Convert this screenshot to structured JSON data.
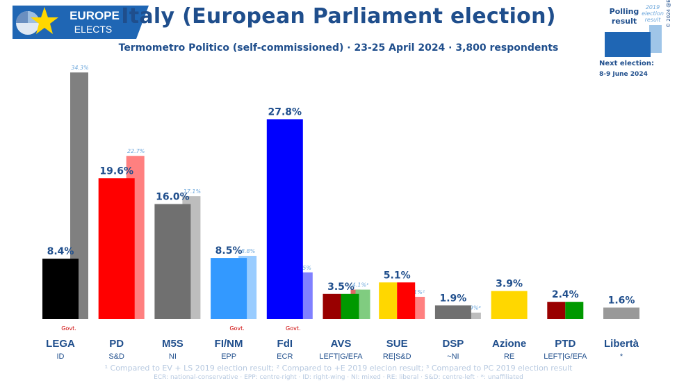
{
  "header": {
    "brand_line1": "EUROPE",
    "brand_line2": "ELECTS",
    "title": "Italy (European Parliament election)",
    "subtitle": "Termometro Politico (self-commissioned) · 23-25 April 2024 · 3,800 respondents"
  },
  "legend": {
    "polling_label": "Polling result",
    "election_label": "2019 election result",
    "next_election_label": "Next election:",
    "next_election_date": "8-9 June 2024",
    "copyright": "© 2024 @EuropeElects"
  },
  "chart_data": {
    "type": "bar",
    "series": [
      {
        "name": "Polling result",
        "values": [
          8.4,
          19.6,
          16.0,
          8.5,
          27.8,
          3.5,
          5.1,
          1.9,
          3.9,
          2.4,
          1.6
        ]
      },
      {
        "name": "2019 election result",
        "values": [
          34.3,
          22.7,
          17.1,
          8.8,
          6.5,
          4.1,
          3.1,
          0.9,
          null,
          null,
          null
        ]
      }
    ],
    "ylim": [
      0,
      35
    ],
    "parties": [
      {
        "name": "LEGA",
        "group": "ID",
        "poll": 8.4,
        "poll_label": "8.4%",
        "prev": 34.3,
        "prev_label": "34.3%",
        "govt": "Govt.",
        "colors": [
          "#000000"
        ],
        "prev_color": "#808080"
      },
      {
        "name": "PD",
        "group": "S&D",
        "poll": 19.6,
        "poll_label": "19.6%",
        "prev": 22.7,
        "prev_label": "22.7%",
        "govt": "",
        "colors": [
          "#ff0000"
        ],
        "prev_color": "#ff8080"
      },
      {
        "name": "M5S",
        "group": "NI",
        "poll": 16.0,
        "poll_label": "16.0%",
        "prev": 17.1,
        "prev_label": "17.1%",
        "govt": "",
        "colors": [
          "#707070"
        ],
        "prev_color": "#bdbdbd"
      },
      {
        "name": "FI/NM",
        "group": "EPP",
        "poll": 8.5,
        "poll_label": "8.5%",
        "prev": 8.8,
        "prev_label": "8.8%",
        "govt": "Govt.",
        "colors": [
          "#3399ff"
        ],
        "prev_color": "#99ccff"
      },
      {
        "name": "FdI",
        "group": "ECR",
        "poll": 27.8,
        "poll_label": "27.8%",
        "prev": 6.5,
        "prev_label": "6.5%",
        "govt": "Govt.",
        "colors": [
          "#0000ff"
        ],
        "prev_color": "#8080ff"
      },
      {
        "name": "AVS",
        "group": "LEFT|G/EFA",
        "poll": 3.5,
        "poll_label": "3.5%",
        "prev": 4.1,
        "prev_label": "4.1%¹",
        "govt": "",
        "colors": [
          "#990000",
          "#009900"
        ],
        "prev_colors": [
          "#e06666",
          "#80cc80"
        ]
      },
      {
        "name": "SUE",
        "group": "RE|S&D",
        "poll": 5.1,
        "poll_label": "5.1%",
        "prev": 3.1,
        "prev_label": "3.1%²",
        "govt": "",
        "colors": [
          "#ffd700",
          "#ff0000"
        ],
        "prev_color": "#ff8080"
      },
      {
        "name": "DSP",
        "group": "~NI",
        "poll": 1.9,
        "poll_label": "1.9%",
        "prev": 0.9,
        "prev_label": "0.9%³",
        "govt": "",
        "colors": [
          "#707070"
        ],
        "prev_color": "#bdbdbd"
      },
      {
        "name": "Azione",
        "group": "RE",
        "poll": 3.9,
        "poll_label": "3.9%",
        "prev": null,
        "prev_label": "",
        "govt": "",
        "colors": [
          "#ffd700"
        ],
        "prev_color": ""
      },
      {
        "name": "PTD",
        "group": "LEFT|G/EFA",
        "poll": 2.4,
        "poll_label": "2.4%",
        "prev": null,
        "prev_label": "",
        "govt": "",
        "colors": [
          "#990000",
          "#009900"
        ],
        "prev_color": ""
      },
      {
        "name": "Libertà",
        "group": "*",
        "poll": 1.6,
        "poll_label": "1.6%",
        "prev": null,
        "prev_label": "",
        "govt": "",
        "colors": [
          "#999999"
        ],
        "prev_color": ""
      }
    ]
  },
  "footnotes": {
    "line1": "¹ Compared to EV + LS 2019 election result; ² Compared to +E 2019 elecion result; ³ Compared to PC 2019 election result",
    "line2": "ECR: national-conservative · EPP: centre-right · ID: right-wing · NI: mixed · RE: liberal · S&D: centre-left · *: unaffiliated"
  }
}
